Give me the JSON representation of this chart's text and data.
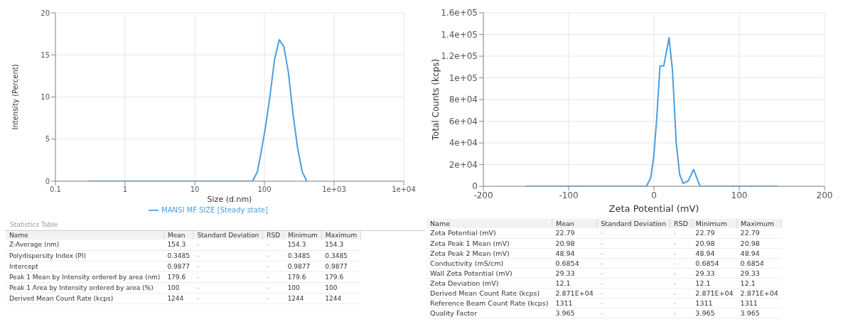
{
  "chart_data": [
    {
      "type": "line",
      "xlabel": "Size (d.nm)",
      "ylabel": "Intensity (Percent)",
      "log": "x",
      "xlim": [
        0.1,
        10000
      ],
      "xticks": [
        0.1,
        1,
        10,
        100,
        {
          "value": 1000,
          "label": "1e+03"
        },
        {
          "value": 10000,
          "label": "1e+04"
        }
      ],
      "ylim": [
        0,
        20
      ],
      "yticks": [
        0,
        5,
        10,
        15,
        20
      ],
      "grid": true,
      "legend": "bottom",
      "series": [
        {
          "name": "MANSI MF SIZE [Steady state]",
          "color": "#4a9ee0",
          "x": [
            0.3,
            67.6,
            78.9,
            88.5,
            103,
            120,
            140,
            163,
            190,
            221,
            257,
            300,
            349,
            406
          ],
          "values": [
            0,
            0,
            1.1,
            3.2,
            6.3,
            10.1,
            14.5,
            16.8,
            16.0,
            12.9,
            8.0,
            3.9,
            1.1,
            0
          ]
        }
      ]
    },
    {
      "type": "line",
      "xlabel": "Zeta Potential (mV)",
      "ylabel": "Total Counts (kcps)",
      "xlim": [
        -200,
        200
      ],
      "xticks": [
        -200,
        -100,
        0,
        100,
        200
      ],
      "ylim": [
        0,
        160000
      ],
      "yticks": [
        0,
        {
          "value": 20000,
          "label": "2e+04"
        },
        {
          "value": 40000,
          "label": "4e+04"
        },
        {
          "value": 60000,
          "label": "6e+04"
        },
        {
          "value": 80000,
          "label": "8e+04"
        },
        {
          "value": 100000,
          "label": "1e+05"
        },
        {
          "value": 120000,
          "label": "1.2e+05"
        },
        {
          "value": 140000,
          "label": "1.4e+05"
        },
        {
          "value": 160000,
          "label": "1.6e+05"
        }
      ],
      "grid": true,
      "series": [
        {
          "color": "#4a9ee0",
          "x": [
            -150,
            -8.8,
            -3.7,
            -0.3,
            3.1,
            7.1,
            11.5,
            17.7,
            21.7,
            26.1,
            30.2,
            34.3,
            40.4,
            46.5,
            54,
            145
          ],
          "values": [
            0,
            0,
            8000,
            27000,
            61000,
            111000,
            111000,
            137000,
            107000,
            40000,
            10700,
            2700,
            5300,
            15500,
            0,
            0
          ]
        }
      ]
    },
    {
      "type": "other",
      "title": "Statistics Table",
      "categories": [
        "Name",
        "Mean",
        "Standard Deviation",
        "RSD",
        "Minimum",
        "Maximum"
      ],
      "cell_labels": [
        [
          "Z-Average (nm)",
          "154.3",
          "-",
          "-",
          "154.3",
          "154.3"
        ],
        [
          "Polydispersity Index (PI)",
          "0.3485",
          "-",
          "-",
          "0.3485",
          "0.3485"
        ],
        [
          "Intercept",
          "0.9877",
          "-",
          "-",
          "0.9877",
          "0.9877"
        ],
        [
          "Peak 1 Mean by Intensity ordered by area (nm)",
          "179.6",
          "-",
          "-",
          "179.6",
          "179.6"
        ],
        [
          "Peak 1 Area by Intensity ordered by area (%)",
          "100",
          "-",
          "-",
          "100",
          "100"
        ],
        [
          "Derived Mean Count Rate (kcps)",
          "1244",
          "-",
          "-",
          "1244",
          "1244"
        ]
      ]
    },
    {
      "type": "other",
      "categories": [
        "Name",
        "Mean",
        "Standard Deviation",
        "RSD",
        "Minimum",
        "Maximum"
      ],
      "cell_labels": [
        [
          "Zeta Potential (mV)",
          "22.79",
          "-",
          "-",
          "22.79",
          "22.79"
        ],
        [
          "Zeta Peak 1 Mean (mV)",
          "20.98",
          "-",
          "-",
          "20.98",
          "20.98"
        ],
        [
          "Zeta Peak 2 Mean (mV)",
          "48.94",
          "-",
          "-",
          "48.94",
          "48.94"
        ],
        [
          "Conductivity (mS/cm)",
          "0.6854",
          "-",
          "-",
          "0.6854",
          "0.6854"
        ],
        [
          "Wall Zeta Potential (mV)",
          "29.33",
          "-",
          "-",
          "29.33",
          "29.33"
        ],
        [
          "Zeta Deviation (mV)",
          "12.1",
          "-",
          "-",
          "12.1",
          "12.1"
        ],
        [
          "Derived Mean Count Rate (kcps)",
          "2.871E+04",
          "-",
          "-",
          "2.871E+04",
          "2.871E+04"
        ],
        [
          "Reference Beam Count Rate (kcps)",
          "1311",
          "-",
          "-",
          "1311",
          "1311"
        ],
        [
          "Quality Factor",
          "3.965",
          "-",
          "-",
          "3.965",
          "3.965"
        ]
      ]
    }
  ]
}
